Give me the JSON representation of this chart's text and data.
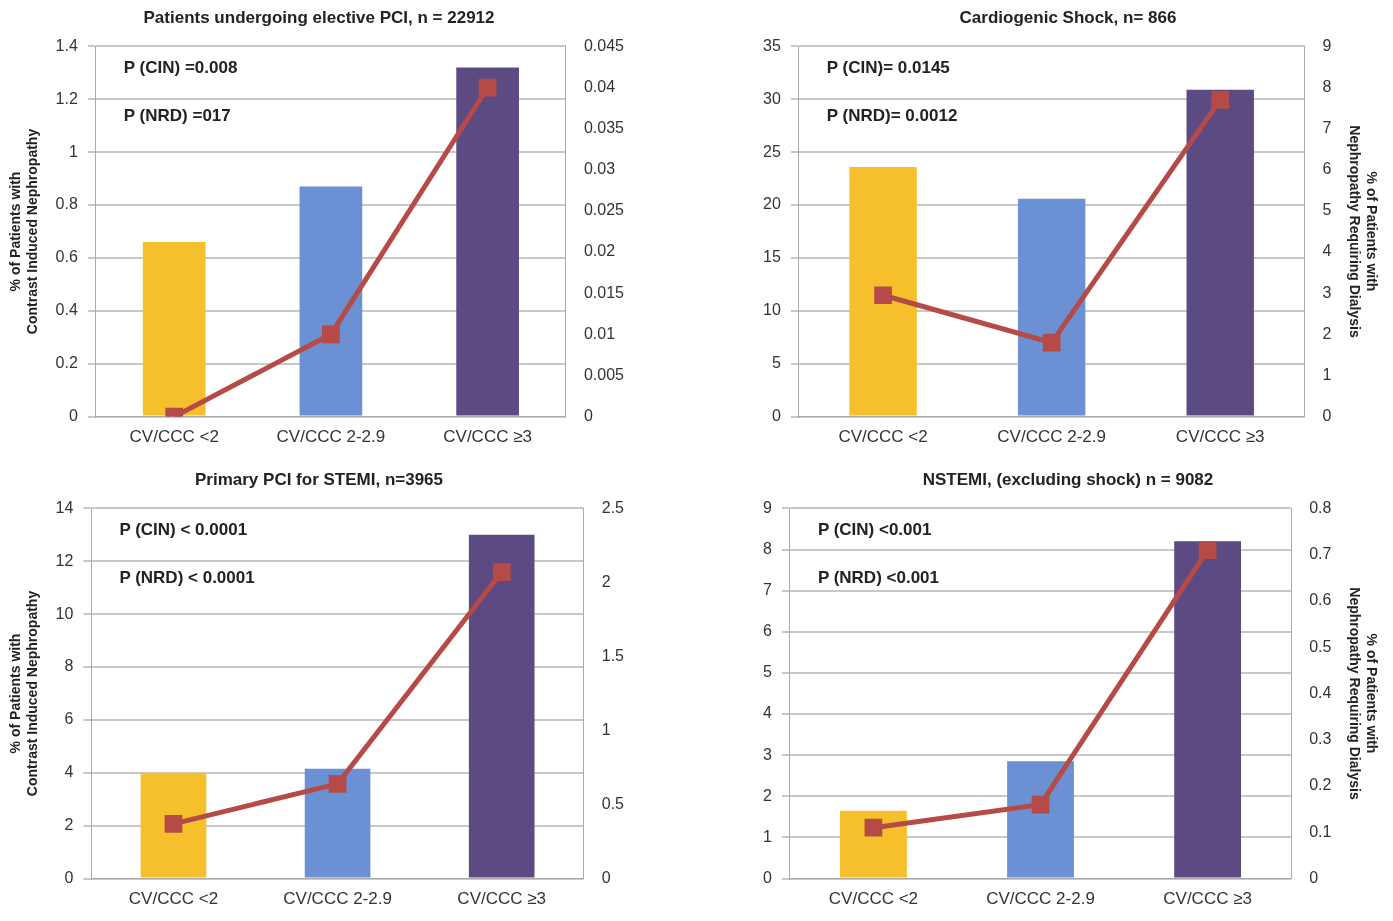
{
  "chart_data": [
    {
      "type": "bar",
      "title": "Patients undergoing elective PCI, n = 22912",
      "ylabel": "% of Patients with\nContrast Induced Nephropathy",
      "categories": [
        "CV/CCC <2",
        "CV/CCC 2-2.9",
        "CV/CCC ≥3"
      ],
      "series": [
        {
          "colors": [
            "#f5c02c",
            "#6b90d4",
            "#5c4a82"
          ],
          "values": [
            0.66,
            0.87,
            1.32
          ]
        },
        {
          "type": "line",
          "axis": "y2",
          "color": "#b54a46",
          "values": [
            0,
            0.01,
            0.04
          ]
        }
      ],
      "ylim": [
        0,
        1.4
      ],
      "yticks": [
        0,
        0.2,
        0.4,
        0.6,
        0.8,
        1,
        1.2,
        1.4
      ],
      "y2lim": [
        0,
        0.045
      ],
      "y2ticks": [
        0,
        0.005,
        0.01,
        0.015,
        0.02,
        0.025,
        0.03,
        0.035,
        0.04,
        0.045
      ],
      "grid": "y",
      "legend": false,
      "marker": "square",
      "annotations": [
        "P (CIN) =0.008",
        "P (NRD) =017"
      ]
    },
    {
      "type": "bar",
      "title": "Cardiogenic Shock, n= 866",
      "y2label": "% of Patients with\nNephropathy Requiring Dialysis",
      "categories": [
        "CV/CCC <2",
        "CV/CCC 2-2.9",
        "CV/CCC ≥3"
      ],
      "series": [
        {
          "colors": [
            "#f5c02c",
            "#6b90d4",
            "#5c4a82"
          ],
          "values": [
            23.6,
            20.6,
            30.9
          ]
        },
        {
          "type": "line",
          "axis": "y2",
          "color": "#b54a46",
          "values": [
            2.95,
            1.8,
            7.7
          ]
        }
      ],
      "ylim": [
        0,
        35
      ],
      "yticks": [
        0,
        5,
        10,
        15,
        20,
        25,
        30,
        35
      ],
      "y2lim": [
        0,
        9
      ],
      "y2ticks": [
        0,
        1,
        2,
        3,
        4,
        5,
        6,
        7,
        8,
        9
      ],
      "grid": "y",
      "legend": false,
      "marker": "square",
      "annotations": [
        "P (CIN)= 0.0145",
        "P (NRD)= 0.0012"
      ]
    },
    {
      "type": "bar",
      "title": "Primary PCI for STEMI, n=3965",
      "ylabel": "% of Patients with\nContrast Induced Nephropathy",
      "categories": [
        "CV/CCC <2",
        "CV/CCC 2-2.9",
        "CV/CCC ≥3"
      ],
      "series": [
        {
          "colors": [
            "#f5c02c",
            "#6b90d4",
            "#5c4a82"
          ],
          "values": [
            4.0,
            4.15,
            13.0
          ]
        },
        {
          "type": "line",
          "axis": "y2",
          "color": "#b54a46",
          "values": [
            0.37,
            0.64,
            2.07
          ]
        }
      ],
      "ylim": [
        0,
        14
      ],
      "yticks": [
        0,
        2,
        4,
        6,
        8,
        10,
        12,
        14
      ],
      "y2lim": [
        0,
        2.5
      ],
      "y2ticks": [
        0,
        0.5,
        1,
        1.5,
        2,
        2.5
      ],
      "grid": "y",
      "legend": false,
      "marker": "square",
      "annotations": [
        "P (CIN) < 0.0001",
        "P (NRD) < 0.0001"
      ]
    },
    {
      "type": "bar",
      "title": "NSTEMI, (excluding shock) n = 9082",
      "y2label": "% of Patients with\nNephropathy Requiring Dialysis",
      "categories": [
        "CV/CCC <2",
        "CV/CCC 2-2.9",
        "CV/CCC ≥3"
      ],
      "series": [
        {
          "colors": [
            "#f5c02c",
            "#6b90d4",
            "#5c4a82"
          ],
          "values": [
            1.65,
            2.85,
            8.2
          ]
        },
        {
          "type": "line",
          "axis": "y2",
          "color": "#b54a46",
          "values": [
            0.11,
            0.16,
            0.71
          ]
        }
      ],
      "ylim": [
        0,
        9
      ],
      "yticks": [
        0,
        1,
        2,
        3,
        4,
        5,
        6,
        7,
        8,
        9
      ],
      "y2lim": [
        0,
        0.8
      ],
      "y2ticks": [
        0,
        0.1,
        0.2,
        0.3,
        0.4,
        0.5,
        0.6,
        0.7,
        0.8
      ],
      "grid": "y",
      "legend": false,
      "marker": "square",
      "annotations": [
        "P (CIN) <0.001",
        "P (NRD) <0.001"
      ]
    }
  ]
}
